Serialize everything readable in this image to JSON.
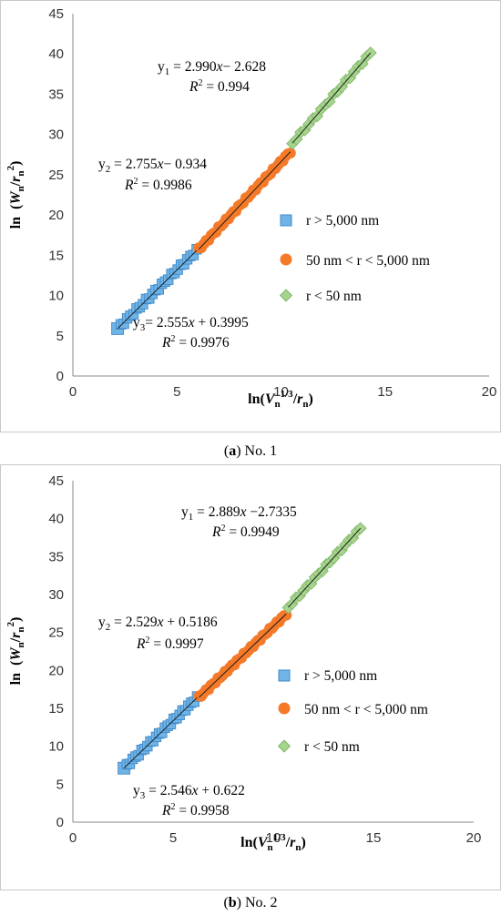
{
  "colors": {
    "series_large": "#70b4e6",
    "series_large_edge": "#3f88c8",
    "series_mid": "#f47a2a",
    "series_small": "#a6d38e",
    "series_small_edge": "#7fb868",
    "fit_line": "#111111"
  },
  "legend_entries": [
    "r > 5,000 nm",
    "50 nm < r < 5,000 nm",
    "r < 50 nm"
  ],
  "chart_data": [
    {
      "type": "scatter",
      "caption_letter": "a",
      "caption_rest": ") No. 1",
      "xlabel": {
        "pre": "ln(",
        "var": "V",
        "sub1": "n",
        "sup": "1/3",
        "slash": "/",
        "var2": "r",
        "sub2": "n",
        "post": ")"
      },
      "ylabel": {
        "pre": "ln (",
        "var": "W",
        "sub1": "n",
        "slash": "/",
        "var2": "r",
        "sub2": "n",
        "sup": "2",
        "post": ")"
      },
      "xlim": [
        0,
        20
      ],
      "ylim": [
        0,
        45
      ],
      "xticks": [
        "0",
        "5",
        "10",
        "15",
        "20"
      ],
      "yticks": [
        "0",
        "5",
        "10",
        "15",
        "20",
        "25",
        "30",
        "35",
        "40",
        "45"
      ],
      "grid": false,
      "legend_position": "right-middle",
      "series": [
        {
          "name": "r > 5,000 nm",
          "marker": "square",
          "x_range": [
            2.15,
            5.95
          ],
          "slope": 2.555,
          "intercept": 0.3995,
          "count": 26
        },
        {
          "name": "50 nm < r < 5,000 nm",
          "marker": "circle",
          "x_range": [
            6.05,
            10.45
          ],
          "slope": 2.755,
          "intercept": -0.934,
          "count": 38
        },
        {
          "name": "r < 50 nm",
          "marker": "diamond",
          "x_range": [
            10.55,
            14.3
          ],
          "slope": 2.99,
          "intercept": -2.628,
          "count": 20
        }
      ],
      "annotations": [
        {
          "lhs": "y",
          "sub": "1",
          "rhs": " = 2.990",
          "xvar": "x",
          "tail": "− 2.628",
          "r2": " = 0.994"
        },
        {
          "lhs": "y",
          "sub": "2",
          "rhs": " = 2.755",
          "xvar": "x",
          "tail": "− 0.934",
          "r2": " = 0.9986"
        },
        {
          "lhs": "y",
          "sub": "3",
          "rhs": "= 2.555",
          "xvar": "x",
          "tail": " + 0.3995",
          "r2": " = 0.9976"
        }
      ]
    },
    {
      "type": "scatter",
      "caption_letter": "b",
      "caption_rest": ") No. 2",
      "xlabel": {
        "pre": "ln(",
        "var": "V",
        "sub1": "n",
        "sup": "1/3",
        "slash": "/",
        "var2": "r",
        "sub2": "n",
        "post": ")"
      },
      "ylabel": {
        "pre": "ln (",
        "var": "W",
        "sub1": "n",
        "slash": "/",
        "var2": "r",
        "sub2": "n",
        "sup": "2",
        "post": ")"
      },
      "xlim": [
        0,
        20
      ],
      "ylim": [
        0,
        45
      ],
      "xticks": [
        "0",
        "5",
        "10",
        "15",
        "20"
      ],
      "yticks": [
        "0",
        "5",
        "10",
        "15",
        "20",
        "25",
        "30",
        "35",
        "40",
        "45"
      ],
      "grid": false,
      "legend_position": "right-middle",
      "series": [
        {
          "name": "r > 5,000 nm",
          "marker": "square",
          "x_range": [
            2.55,
            6.2
          ],
          "slope": 2.546,
          "intercept": 0.622,
          "count": 26
        },
        {
          "name": "50 nm < r < 5,000 nm",
          "marker": "circle",
          "x_range": [
            6.3,
            10.65
          ],
          "slope": 2.529,
          "intercept": 0.5186,
          "count": 38
        },
        {
          "name": "r < 50 nm",
          "marker": "diamond",
          "x_range": [
            10.75,
            14.35
          ],
          "slope": 2.889,
          "intercept": -2.7335,
          "count": 20
        }
      ],
      "annotations": [
        {
          "lhs": "y",
          "sub": "1",
          "rhs": " = 2.889",
          "xvar": "x",
          "tail": " −2.7335",
          "r2": " = 0.9949"
        },
        {
          "lhs": "y",
          "sub": "2",
          "rhs": " = 2.529",
          "xvar": "x",
          "tail": " + 0.5186",
          "r2": " = 0.9997"
        },
        {
          "lhs": "y",
          "sub": "3",
          "rhs": " = 2.546",
          "xvar": "x",
          "tail": " + 0.622",
          "r2": " = 0.9958"
        }
      ]
    }
  ]
}
